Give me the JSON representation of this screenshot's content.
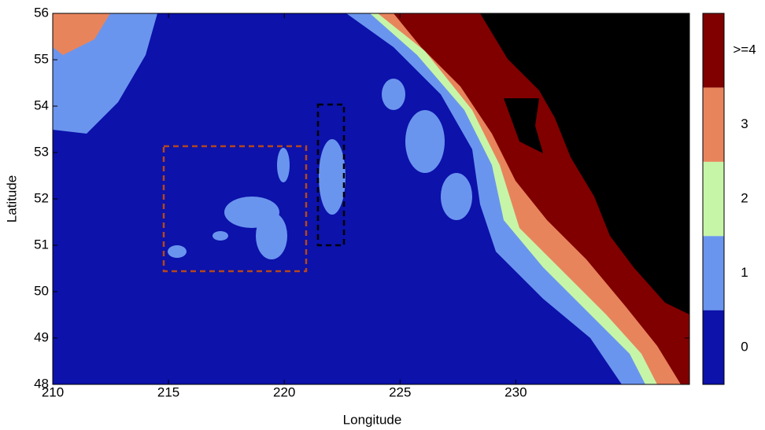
{
  "chart_data": {
    "type": "heatmap",
    "xlabel": "Longitude",
    "ylabel": "Latitude",
    "xlim": [
      210,
      237.5
    ],
    "xticks": [
      210,
      215,
      220,
      225,
      230
    ],
    "ylim": [
      48,
      56
    ],
    "yticks": [
      48,
      49,
      50,
      51,
      52,
      53,
      54,
      55,
      56
    ],
    "colorbar": {
      "categories": [
        "0",
        "1",
        "2",
        "3",
        ">=4"
      ],
      "colors": [
        "#0c12aa",
        "#6a95ee",
        "#c6f5a8",
        "#e8845c",
        "#800000"
      ]
    }
  }
}
